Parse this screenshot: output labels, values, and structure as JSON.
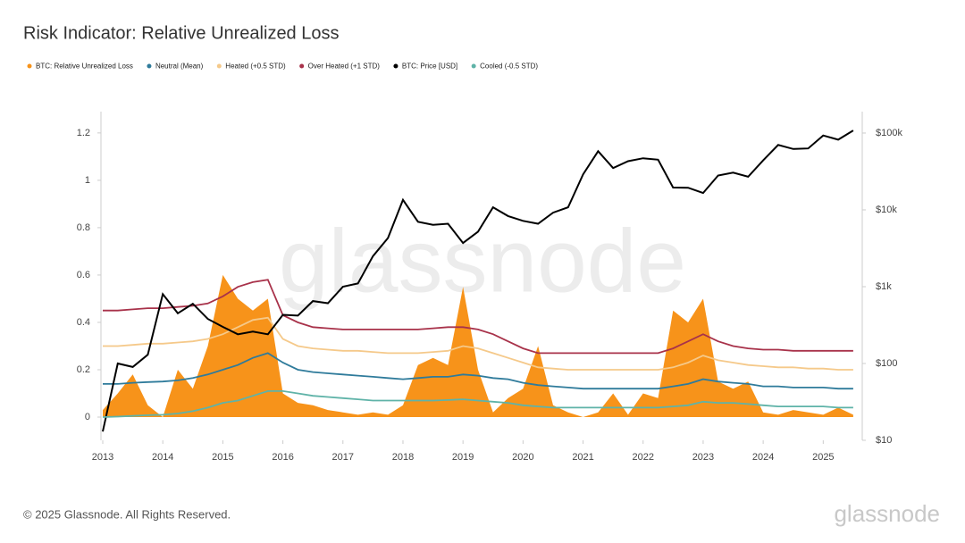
{
  "chart_data": {
    "type": "line",
    "title": "Risk Indicator: Relative Unrealized Loss",
    "footer": "© 2025 Glassnode. All Rights Reserved.",
    "watermark": "glassnode",
    "logo": "glassnode",
    "x": [
      2013,
      2013.25,
      2013.5,
      2013.75,
      2014,
      2014.25,
      2014.5,
      2014.75,
      2015,
      2015.25,
      2015.5,
      2015.75,
      2016,
      2016.25,
      2016.5,
      2016.75,
      2017,
      2017.25,
      2017.5,
      2017.75,
      2018,
      2018.25,
      2018.5,
      2018.75,
      2019,
      2019.25,
      2019.5,
      2019.75,
      2020,
      2020.25,
      2020.5,
      2020.75,
      2021,
      2021.25,
      2021.5,
      2021.75,
      2022,
      2022.25,
      2022.5,
      2022.75,
      2023,
      2023.25,
      2023.5,
      2023.75,
      2024,
      2024.25,
      2024.5,
      2024.75,
      2025,
      2025.25,
      2025.5
    ],
    "xlim": [
      2012.97,
      2025.65
    ],
    "xticks": [
      2013,
      2014,
      2015,
      2016,
      2017,
      2018,
      2019,
      2020,
      2021,
      2022,
      2023,
      2024,
      2025
    ],
    "ylim": [
      -0.098,
      1.29
    ],
    "yticks": [
      0,
      0.2,
      0.4,
      0.6,
      0.8,
      1,
      1.2
    ],
    "y2lim": [
      10,
      190000
    ],
    "y2scale": "log",
    "y2ticks": [
      {
        "value": 10,
        "label": "$10"
      },
      {
        "value": 100,
        "label": "$100"
      },
      {
        "value": 1000,
        "label": "$1k"
      },
      {
        "value": 10000,
        "label": "$10k"
      },
      {
        "value": 100000,
        "label": "$100k"
      }
    ],
    "series": [
      {
        "name": "BTC: Relative Unrealized Loss",
        "color": "#f7931a",
        "kind": "area",
        "values": [
          0.03,
          0.1,
          0.18,
          0.05,
          0.0,
          0.2,
          0.12,
          0.3,
          0.6,
          0.5,
          0.45,
          0.5,
          0.1,
          0.06,
          0.05,
          0.03,
          0.02,
          0.01,
          0.02,
          0.01,
          0.05,
          0.22,
          0.25,
          0.22,
          0.55,
          0.2,
          0.02,
          0.08,
          0.12,
          0.3,
          0.05,
          0.02,
          0.0,
          0.02,
          0.1,
          0.01,
          0.1,
          0.08,
          0.45,
          0.4,
          0.5,
          0.15,
          0.12,
          0.15,
          0.02,
          0.01,
          0.03,
          0.02,
          0.01,
          0.04,
          0.01
        ]
      },
      {
        "name": "Neutral (Mean)",
        "color": "#2f7b9b",
        "values": [
          0.14,
          0.14,
          0.145,
          0.148,
          0.15,
          0.155,
          0.165,
          0.18,
          0.2,
          0.22,
          0.25,
          0.27,
          0.23,
          0.2,
          0.19,
          0.185,
          0.18,
          0.175,
          0.17,
          0.165,
          0.16,
          0.165,
          0.17,
          0.17,
          0.18,
          0.175,
          0.165,
          0.16,
          0.145,
          0.135,
          0.13,
          0.125,
          0.12,
          0.12,
          0.12,
          0.12,
          0.12,
          0.12,
          0.13,
          0.14,
          0.16,
          0.15,
          0.145,
          0.14,
          0.13,
          0.13,
          0.125,
          0.125,
          0.125,
          0.12,
          0.12
        ]
      },
      {
        "name": "Heated (+0.5 STD)",
        "color": "#f5c98a",
        "values": [
          0.3,
          0.3,
          0.305,
          0.31,
          0.31,
          0.315,
          0.32,
          0.33,
          0.35,
          0.38,
          0.41,
          0.42,
          0.33,
          0.3,
          0.29,
          0.285,
          0.28,
          0.28,
          0.275,
          0.27,
          0.27,
          0.27,
          0.275,
          0.28,
          0.3,
          0.29,
          0.27,
          0.25,
          0.23,
          0.21,
          0.205,
          0.2,
          0.2,
          0.2,
          0.2,
          0.2,
          0.2,
          0.2,
          0.21,
          0.23,
          0.26,
          0.24,
          0.23,
          0.22,
          0.215,
          0.21,
          0.21,
          0.205,
          0.205,
          0.2,
          0.2
        ]
      },
      {
        "name": "Over Heated (+1 STD)",
        "color": "#a8324a",
        "values": [
          0.45,
          0.45,
          0.455,
          0.46,
          0.46,
          0.465,
          0.47,
          0.48,
          0.51,
          0.55,
          0.57,
          0.58,
          0.43,
          0.4,
          0.38,
          0.375,
          0.37,
          0.37,
          0.37,
          0.37,
          0.37,
          0.37,
          0.375,
          0.38,
          0.38,
          0.37,
          0.35,
          0.32,
          0.29,
          0.27,
          0.27,
          0.27,
          0.27,
          0.27,
          0.27,
          0.27,
          0.27,
          0.27,
          0.29,
          0.32,
          0.35,
          0.32,
          0.3,
          0.29,
          0.285,
          0.285,
          0.28,
          0.28,
          0.28,
          0.28,
          0.28
        ]
      },
      {
        "name": "BTC: Price [USD]",
        "color": "#000000",
        "axis": "y2",
        "values": [
          13,
          100,
          90,
          130,
          800,
          450,
          600,
          380,
          300,
          240,
          260,
          240,
          430,
          420,
          650,
          610,
          1000,
          1100,
          2500,
          4300,
          13500,
          7000,
          6400,
          6600,
          3700,
          5200,
          10800,
          8300,
          7200,
          6600,
          9200,
          10800,
          29000,
          58000,
          35000,
          43000,
          47000,
          45000,
          19500,
          19400,
          16600,
          28000,
          30500,
          27000,
          44000,
          70000,
          62000,
          63000,
          93000,
          82000,
          108000
        ]
      },
      {
        "name": "Cooled (-0.5 STD)",
        "color": "#5fb3a8",
        "values": [
          0,
          0.002,
          0.005,
          0.008,
          0.01,
          0.015,
          0.025,
          0.04,
          0.06,
          0.07,
          0.09,
          0.11,
          0.11,
          0.1,
          0.09,
          0.085,
          0.08,
          0.075,
          0.07,
          0.07,
          0.07,
          0.07,
          0.07,
          0.072,
          0.075,
          0.07,
          0.065,
          0.06,
          0.05,
          0.045,
          0.04,
          0.04,
          0.04,
          0.04,
          0.04,
          0.04,
          0.04,
          0.04,
          0.045,
          0.05,
          0.065,
          0.06,
          0.06,
          0.055,
          0.05,
          0.045,
          0.045,
          0.045,
          0.045,
          0.04,
          0.04
        ]
      }
    ]
  }
}
